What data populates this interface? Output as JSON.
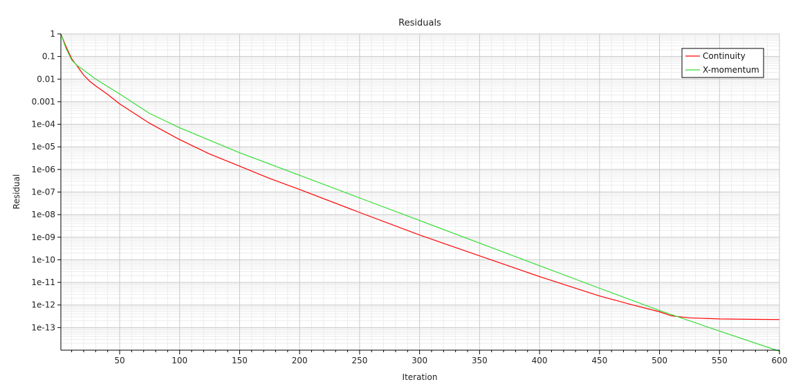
{
  "chart_data": {
    "type": "line",
    "title": "Residuals",
    "xlabel": "Iteration",
    "ylabel": "Residual",
    "xscale": "linear",
    "yscale": "log",
    "xlim": [
      1,
      600
    ],
    "ylim_log10": [
      -14,
      0
    ],
    "xticks": [
      50,
      100,
      150,
      200,
      250,
      300,
      350,
      400,
      450,
      500,
      550,
      600
    ],
    "xtick_labels": [
      "50",
      "100",
      "150",
      "200",
      "250",
      "300",
      "350",
      "400",
      "450",
      "500",
      "550",
      "600"
    ],
    "yticks": [
      1,
      0.1,
      0.01,
      0.001,
      0.0001,
      1e-05,
      1e-06,
      1e-07,
      1e-08,
      1e-09,
      1e-10,
      1e-11,
      1e-12,
      1e-13
    ],
    "ytick_labels": [
      "1",
      "0.1",
      "0.01",
      "0.001",
      "1e-04",
      "1e-05",
      "1e-06",
      "1e-07",
      "1e-08",
      "1e-09",
      "1e-10",
      "1e-11",
      "1e-12",
      "1e-13"
    ],
    "grid": true,
    "legend_position": "top-right",
    "series": [
      {
        "name": "Continuity",
        "color": "#ff0000",
        "x": [
          1,
          5,
          10,
          15,
          20,
          25,
          30,
          40,
          50,
          75,
          100,
          125,
          150,
          175,
          200,
          250,
          300,
          350,
          400,
          450,
          475,
          500,
          510,
          525,
          550,
          575,
          600
        ],
        "y": [
          1,
          0.3,
          0.08,
          0.035,
          0.015,
          0.008,
          0.005,
          0.0021,
          0.0008,
          0.00011,
          2.1e-05,
          4.8e-06,
          1.4e-06,
          4e-07,
          1.3e-07,
          1.25e-08,
          1.25e-09,
          1.5e-10,
          1.8e-11,
          2.5e-12,
          1.1e-12,
          5e-13,
          3.3e-13,
          2.7e-13,
          2.4e-13,
          2.32e-13,
          2.28e-13
        ]
      },
      {
        "name": "X-momentum",
        "color": "#33dd33",
        "x": [
          1,
          5,
          10,
          15,
          20,
          30,
          50,
          75,
          100,
          150,
          200,
          250,
          300,
          350,
          400,
          450,
          500,
          550,
          600
        ],
        "y": [
          1,
          0.25,
          0.07,
          0.038,
          0.025,
          0.01,
          0.0022,
          0.0003,
          7e-05,
          5.5e-06,
          5.5e-07,
          5.5e-08,
          5.5e-09,
          5.5e-10,
          5.5e-11,
          5.5e-12,
          5.7e-13,
          7e-14,
          9e-15
        ]
      }
    ]
  }
}
